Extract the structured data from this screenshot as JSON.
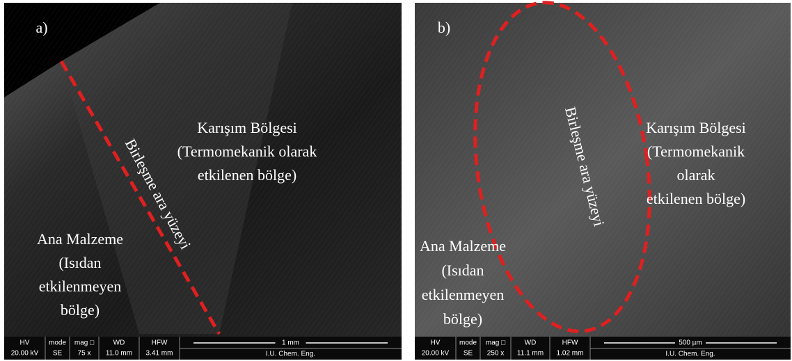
{
  "panels": [
    {
      "label": "a)",
      "annotations": [
        {
          "lines": [
            "Karışım Bölgesi",
            "(Termomekanik olarak",
            "etkilenen bölge)"
          ]
        },
        {
          "lines": [
            "Ana Malzeme",
            "(Isıdan",
            "etkilenmeyen",
            "bölge)"
          ]
        },
        {
          "lines": [
            "Birleşme ara yüzeyi"
          ]
        }
      ],
      "info_bar": {
        "headers": [
          "HV",
          "mode",
          "mag □",
          "WD",
          "HFW"
        ],
        "values": [
          "20.00 kV",
          "SE",
          "75 x",
          "11.0 mm",
          "3.41 mm"
        ],
        "scale": "1 mm",
        "institution": "I.U. Chem. Eng."
      }
    },
    {
      "label": "b)",
      "annotations": [
        {
          "lines": [
            "Karışım Bölgesi",
            "(Termomekanik",
            "olarak",
            "etkilenen bölge)"
          ]
        },
        {
          "lines": [
            "Ana Malzeme",
            "(Isıdan",
            "etkilenmeyen",
            "bölge)"
          ]
        },
        {
          "lines": [
            "Birleşme ara yüzeyi"
          ]
        }
      ],
      "info_bar": {
        "headers": [
          "HV",
          "mode",
          "mag □",
          "WD",
          "HFW"
        ],
        "values": [
          "20.00 kV",
          "SE",
          "250 x",
          "11.1 mm",
          "1.02 mm"
        ],
        "scale": "500 µm",
        "institution": "I.U. Chem. Eng."
      }
    }
  ]
}
